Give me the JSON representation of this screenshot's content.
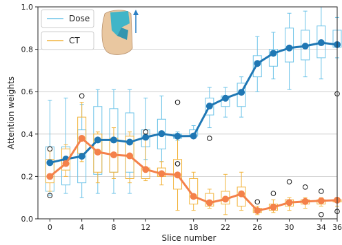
{
  "chart_data": {
    "type": "line",
    "xlabel": "Slice number",
    "ylabel": "Attention weights",
    "xlim": [
      -1.5,
      36
    ],
    "ylim": [
      0.0,
      1.0
    ],
    "x_ticks": [
      0,
      4,
      8,
      12,
      18,
      22,
      26,
      30,
      34,
      36
    ],
    "x_tick_labels": [
      "0",
      "4",
      "8",
      "12",
      "18",
      "22",
      "26",
      "30",
      "34",
      "36"
    ],
    "y_ticks": [
      0.0,
      0.2,
      0.4,
      0.6,
      0.8,
      1.0
    ],
    "y_tick_labels": [
      "0.0",
      "0.2",
      "0.4",
      "0.6",
      "0.8",
      "1.0"
    ],
    "grid": "horizontal",
    "legend_position": "top-left",
    "series": [
      {
        "name": "Dose",
        "color": "#1f77b4",
        "box_color": "#6cc3e8",
        "x": [
          0,
          2,
          4,
          6,
          8,
          10,
          12,
          14,
          16,
          18,
          20,
          22,
          24,
          26,
          28,
          30,
          32,
          34,
          36
        ],
        "values": [
          0.265,
          0.282,
          0.295,
          0.372,
          0.372,
          0.362,
          0.385,
          0.402,
          0.39,
          0.391,
          0.532,
          0.569,
          0.597,
          0.733,
          0.781,
          0.806,
          0.815,
          0.831,
          0.822
        ],
        "boxes": [
          {
            "whisker_low": 0.11,
            "q1": 0.13,
            "q3": 0.34,
            "whisker_high": 0.56,
            "outliers": [
              0.33,
              0.11
            ]
          },
          {
            "whisker_low": 0.12,
            "q1": 0.16,
            "q3": 0.34,
            "whisker_high": 0.57,
            "outliers": []
          },
          {
            "whisker_low": 0.1,
            "q1": 0.17,
            "q3": 0.42,
            "whisker_high": 0.54,
            "outliers": []
          },
          {
            "whisker_low": 0.12,
            "q1": 0.21,
            "q3": 0.53,
            "whisker_high": 0.61,
            "outliers": []
          },
          {
            "whisker_low": 0.12,
            "q1": 0.22,
            "q3": 0.52,
            "whisker_high": 0.61,
            "outliers": []
          },
          {
            "whisker_low": 0.12,
            "q1": 0.22,
            "q3": 0.5,
            "whisker_high": 0.61,
            "outliers": []
          },
          {
            "whisker_low": 0.28,
            "q1": 0.34,
            "q3": 0.42,
            "whisker_high": 0.57,
            "outliers": []
          },
          {
            "whisker_low": 0.27,
            "q1": 0.33,
            "q3": 0.47,
            "whisker_high": 0.58,
            "outliers": []
          },
          {
            "whisker_low": 0.37,
            "q1": 0.38,
            "q3": 0.4,
            "whisker_high": 0.41,
            "outliers": []
          },
          {
            "whisker_low": 0.38,
            "q1": 0.39,
            "q3": 0.42,
            "whisker_high": 0.44,
            "outliers": []
          },
          {
            "whisker_low": 0.43,
            "q1": 0.49,
            "q3": 0.57,
            "whisker_high": 0.62,
            "outliers": [
              0.38
            ]
          },
          {
            "whisker_low": 0.48,
            "q1": 0.53,
            "q3": 0.58,
            "whisker_high": 0.62,
            "outliers": []
          },
          {
            "whisker_low": 0.48,
            "q1": 0.53,
            "q3": 0.64,
            "whisker_high": 0.67,
            "outliers": []
          },
          {
            "whisker_low": 0.6,
            "q1": 0.67,
            "q3": 0.77,
            "whisker_high": 0.86,
            "outliers": []
          },
          {
            "whisker_low": 0.66,
            "q1": 0.72,
            "q3": 0.8,
            "whisker_high": 0.88,
            "outliers": []
          },
          {
            "whisker_low": 0.61,
            "q1": 0.74,
            "q3": 0.9,
            "whisker_high": 0.97,
            "outliers": []
          },
          {
            "whisker_low": 0.67,
            "q1": 0.75,
            "q3": 0.89,
            "whisker_high": 0.98,
            "outliers": []
          },
          {
            "whisker_low": 0.66,
            "q1": 0.76,
            "q3": 0.91,
            "whisker_high": 1.0,
            "outliers": []
          },
          {
            "whisker_low": 0.76,
            "q1": 0.81,
            "q3": 0.89,
            "whisker_high": 0.95,
            "outliers": [
              0.59
            ]
          }
        ]
      },
      {
        "name": "CT",
        "color": "#f4814a",
        "box_color": "#f2b43c",
        "x": [
          0,
          2,
          4,
          6,
          8,
          10,
          12,
          14,
          16,
          18,
          20,
          22,
          24,
          26,
          28,
          30,
          32,
          34,
          36
        ],
        "values": [
          0.2,
          0.261,
          0.38,
          0.315,
          0.302,
          0.297,
          0.233,
          0.213,
          0.207,
          0.106,
          0.076,
          0.093,
          0.118,
          0.039,
          0.055,
          0.077,
          0.082,
          0.085,
          0.088
        ],
        "boxes": [
          {
            "whisker_low": 0.13,
            "q1": 0.17,
            "q3": 0.28,
            "whisker_high": 0.32,
            "outliers": []
          },
          {
            "whisker_low": 0.2,
            "q1": 0.23,
            "q3": 0.33,
            "whisker_high": 0.35,
            "outliers": []
          },
          {
            "whisker_low": 0.27,
            "q1": 0.31,
            "q3": 0.48,
            "whisker_high": 0.55,
            "outliers": [
              0.58
            ]
          },
          {
            "whisker_low": 0.17,
            "q1": 0.22,
            "q3": 0.4,
            "whisker_high": 0.41,
            "outliers": []
          },
          {
            "whisker_low": 0.19,
            "q1": 0.22,
            "q3": 0.38,
            "whisker_high": 0.43,
            "outliers": []
          },
          {
            "whisker_low": 0.17,
            "q1": 0.19,
            "q3": 0.39,
            "whisker_high": 0.41,
            "outliers": []
          },
          {
            "whisker_low": 0.18,
            "q1": 0.19,
            "q3": 0.24,
            "whisker_high": 0.4,
            "outliers": [
              0.41
            ]
          },
          {
            "whisker_low": 0.16,
            "q1": 0.2,
            "q3": 0.24,
            "whisker_high": 0.27,
            "outliers": []
          },
          {
            "whisker_low": 0.04,
            "q1": 0.14,
            "q3": 0.28,
            "whisker_high": 0.38,
            "outliers": [
              0.55,
              0.26
            ]
          },
          {
            "whisker_low": 0.04,
            "q1": 0.07,
            "q3": 0.19,
            "whisker_high": 0.22,
            "outliers": []
          },
          {
            "whisker_low": 0.05,
            "q1": 0.06,
            "q3": 0.12,
            "whisker_high": 0.14,
            "outliers": []
          },
          {
            "whisker_low": 0.02,
            "q1": 0.07,
            "q3": 0.13,
            "whisker_high": 0.21,
            "outliers": []
          },
          {
            "whisker_low": 0.04,
            "q1": 0.06,
            "q3": 0.15,
            "whisker_high": 0.22,
            "outliers": []
          },
          {
            "whisker_low": 0.02,
            "q1": 0.03,
            "q3": 0.05,
            "whisker_high": 0.06,
            "outliers": [
              0.08
            ]
          },
          {
            "whisker_low": 0.03,
            "q1": 0.04,
            "q3": 0.07,
            "whisker_high": 0.09,
            "outliers": [
              0.12
            ]
          },
          {
            "whisker_low": 0.04,
            "q1": 0.06,
            "q3": 0.09,
            "whisker_high": 0.1,
            "outliers": [
              0.175
            ]
          },
          {
            "whisker_low": 0.05,
            "q1": 0.07,
            "q3": 0.09,
            "whisker_high": 0.1,
            "outliers": [
              0.15
            ]
          },
          {
            "whisker_low": 0.06,
            "q1": 0.07,
            "q3": 0.09,
            "whisker_high": 0.1,
            "outliers": [
              0.13,
              0.02
            ]
          },
          {
            "whisker_low": 0.06,
            "q1": 0.08,
            "q3": 0.09,
            "whisker_high": 0.1,
            "outliers": [
              0.035
            ]
          }
        ]
      }
    ]
  },
  "legend": {
    "dose_label": "Dose",
    "ct_label": "CT",
    "image_icon": "anatomy-3d-render-icon"
  }
}
